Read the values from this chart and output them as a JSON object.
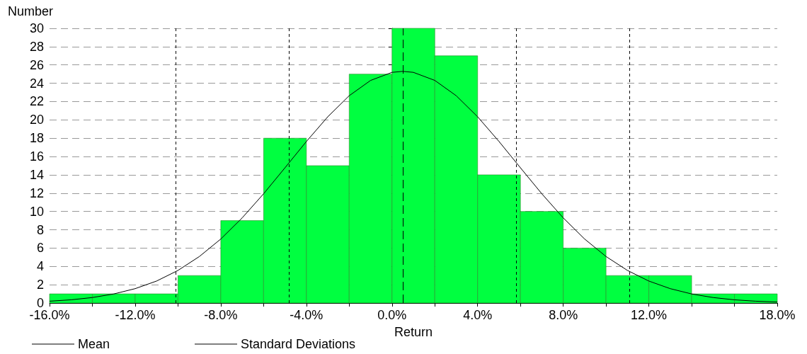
{
  "chart_data": {
    "type": "histogram",
    "xlabel": "Return",
    "ylabel": "Number",
    "bins": [
      -16,
      -14,
      -12,
      -10,
      -8,
      -6,
      -4,
      -2,
      0,
      2,
      4,
      6,
      8,
      10,
      12,
      14,
      16,
      18
    ],
    "values": [
      1,
      1,
      1,
      3,
      9,
      18,
      15,
      25,
      30,
      27,
      14,
      10,
      6,
      3,
      3,
      1,
      1
    ],
    "color": "#00ff40",
    "series": [
      {
        "type": "line",
        "color": "#000000",
        "x": [
          -16,
          -15,
          -14,
          -13,
          -12,
          -11,
          -10,
          -9,
          -8,
          -7,
          -6,
          -5,
          -4,
          -3,
          -2,
          -1,
          0,
          0.5,
          1,
          2,
          3,
          4,
          5,
          6,
          7,
          8,
          9,
          10,
          11,
          12,
          13,
          14,
          15,
          16,
          17,
          18
        ],
        "values": [
          0.2,
          0.35,
          0.6,
          0.99,
          1.57,
          2.4,
          3.56,
          5.08,
          6.99,
          9.3,
          11.93,
          14.77,
          17.64,
          20.34,
          22.64,
          24.31,
          25.19,
          25.3,
          25.19,
          24.31,
          22.64,
          20.34,
          17.64,
          14.77,
          11.93,
          9.3,
          6.99,
          5.08,
          3.56,
          2.4,
          1.57,
          0.99,
          0.6,
          0.35,
          0.2,
          0.11
        ]
      }
    ],
    "xlim": [
      -16,
      18
    ],
    "xticks": [
      {
        "value": -16,
        "label": "-16.0%"
      },
      {
        "value": -14,
        "label": null
      },
      {
        "value": -12,
        "label": "-12.0%"
      },
      {
        "value": -10,
        "label": null
      },
      {
        "value": -8,
        "label": "-8.0%"
      },
      {
        "value": -6,
        "label": null
      },
      {
        "value": -4,
        "label": "-4.0%"
      },
      {
        "value": -2,
        "label": null
      },
      {
        "value": 0,
        "label": "0.0%"
      },
      {
        "value": 2,
        "label": null
      },
      {
        "value": 4,
        "label": "4.0%"
      },
      {
        "value": 6,
        "label": null
      },
      {
        "value": 8,
        "label": "8.0%"
      },
      {
        "value": 10,
        "label": null
      },
      {
        "value": 12,
        "label": "12.0%"
      },
      {
        "value": 14,
        "label": null
      },
      {
        "value": 16,
        "label": null
      },
      {
        "value": 18,
        "label": "18.0%"
      }
    ],
    "ylim": [
      0,
      30
    ],
    "yticks": [
      0,
      2,
      4,
      6,
      8,
      10,
      12,
      14,
      16,
      18,
      20,
      22,
      24,
      26,
      28,
      30
    ],
    "grid": "y",
    "legend": "bottom",
    "ref_lines": [
      {
        "axis": "x",
        "value": 0.5,
        "label": "Mean",
        "color": "#000000",
        "line_style": "dashed"
      },
      {
        "axis": "x",
        "value": -10.1,
        "label": "Standard Deviations",
        "color": "#000000",
        "line_style": "dotted"
      },
      {
        "axis": "x",
        "value": -4.8,
        "label": null,
        "color": "#000000",
        "line_style": "dotted"
      },
      {
        "axis": "x",
        "value": 5.8,
        "label": null,
        "color": "#000000",
        "line_style": "dotted"
      },
      {
        "axis": "x",
        "value": 11.1,
        "label": null,
        "color": "#000000",
        "line_style": "dotted"
      }
    ]
  }
}
